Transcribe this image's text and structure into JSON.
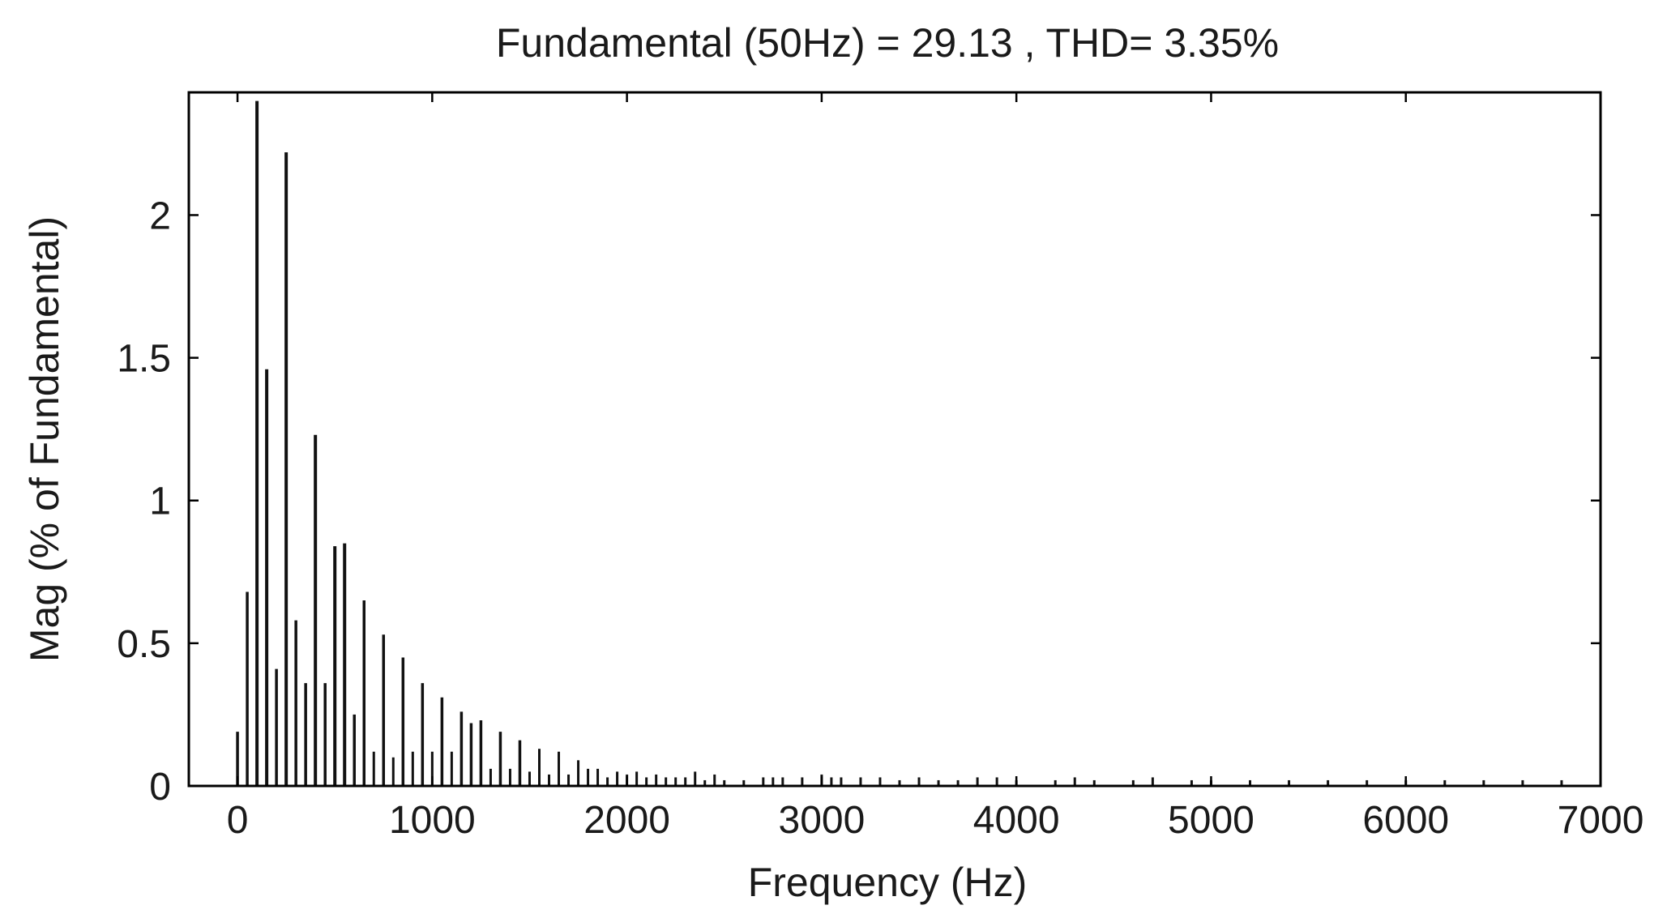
{
  "chart_data": {
    "type": "bar",
    "title": "Fundamental (50Hz) = 29.13 , THD= 3.35%",
    "xlabel": "Frequency (Hz)",
    "ylabel": "Mag (% of Fundamental)",
    "xlim": [
      -250,
      7000
    ],
    "ylim": [
      0,
      2.43
    ],
    "grid": false,
    "x_ticks": [
      0,
      1000,
      2000,
      3000,
      4000,
      5000,
      6000,
      7000
    ],
    "x_tick_labels": [
      "0",
      "1000",
      "2000",
      "3000",
      "4000",
      "5000",
      "6000",
      "7000"
    ],
    "y_ticks": [
      0,
      0.5,
      1,
      1.5,
      2
    ],
    "y_tick_labels": [
      "0",
      "0.5",
      "1",
      "1.5",
      "2"
    ],
    "bar_color": "#111111",
    "series": [
      {
        "x": [
          0,
          50,
          100,
          150,
          200,
          250,
          300,
          350,
          400,
          450,
          500,
          550,
          600,
          650,
          700,
          750,
          800,
          850,
          900,
          950,
          1000,
          1050,
          1100,
          1150,
          1200,
          1250,
          1300,
          1350,
          1400,
          1450,
          1500,
          1550,
          1600,
          1650,
          1700,
          1750,
          1800,
          1850,
          1900,
          1950,
          2000,
          2050,
          2100,
          2150,
          2200,
          2250,
          2300,
          2350,
          2400,
          2450,
          2500,
          2600,
          2700,
          2750,
          2800,
          2900,
          3000,
          3050,
          3100,
          3200,
          3300,
          3400,
          3500,
          3600,
          3700,
          3800,
          3900,
          4000,
          4200,
          4300,
          4400,
          4600,
          4700,
          4900,
          5000,
          5200,
          5400,
          5600,
          5800,
          6000,
          6200,
          6400,
          6600,
          6800,
          7000
        ],
        "values": [
          0.19,
          0.68,
          2.4,
          1.46,
          0.41,
          2.22,
          0.58,
          0.36,
          1.23,
          0.36,
          0.84,
          0.85,
          0.25,
          0.65,
          0.12,
          0.53,
          0.1,
          0.45,
          0.12,
          0.36,
          0.12,
          0.31,
          0.12,
          0.26,
          0.22,
          0.23,
          0.06,
          0.19,
          0.06,
          0.16,
          0.05,
          0.13,
          0.04,
          0.12,
          0.04,
          0.09,
          0.06,
          0.06,
          0.03,
          0.05,
          0.04,
          0.05,
          0.03,
          0.04,
          0.03,
          0.03,
          0.03,
          0.05,
          0.02,
          0.04,
          0.02,
          0.02,
          0.03,
          0.03,
          0.03,
          0.03,
          0.04,
          0.03,
          0.03,
          0.03,
          0.03,
          0.02,
          0.03,
          0.02,
          0.02,
          0.03,
          0.03,
          0.02,
          0.02,
          0.03,
          0.02,
          0.02,
          0.03,
          0.02,
          0.02,
          0.02,
          0.02,
          0.02,
          0.02,
          0.02,
          0.02,
          0.02,
          0.02,
          0.02,
          0.02
        ]
      }
    ]
  }
}
